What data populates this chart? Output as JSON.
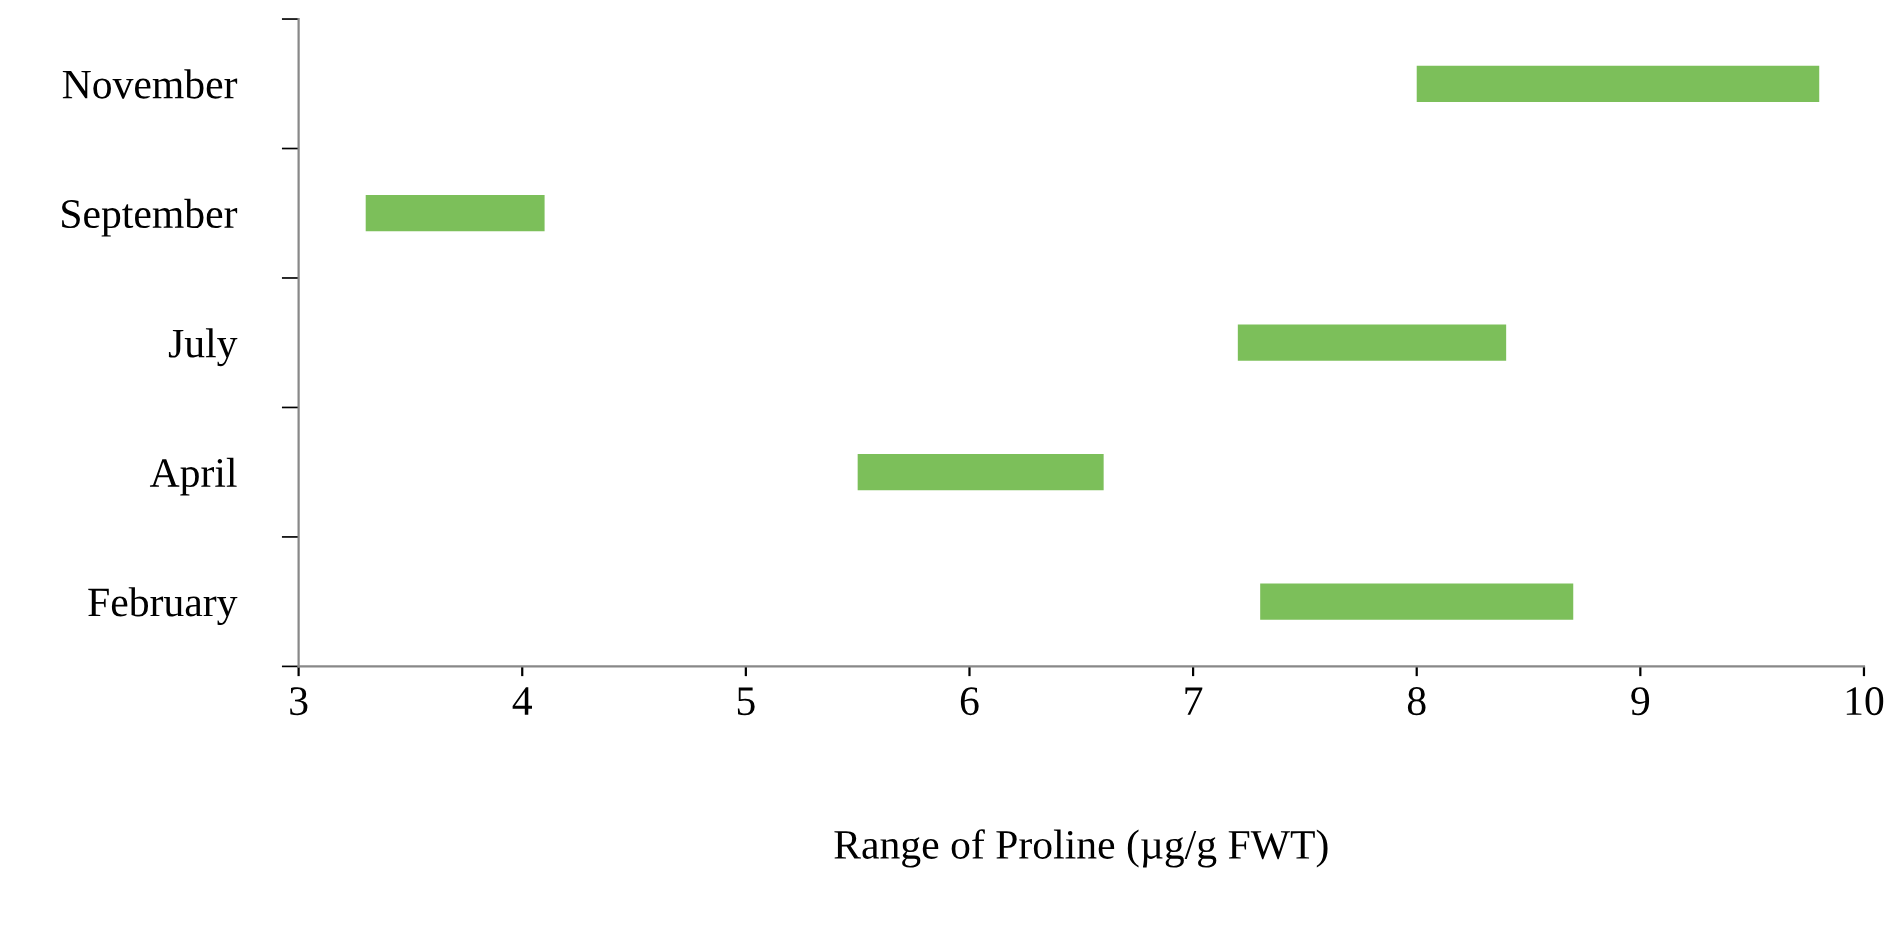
{
  "chart_data": {
    "type": "bar",
    "orientation": "horizontal",
    "xlabel": "Range of Proline (µg/g FWT)",
    "categories": [
      "November",
      "September",
      "July",
      "April",
      "February"
    ],
    "base": [
      8.0,
      3.3,
      7.2,
      5.5,
      7.3
    ],
    "values": [
      1.8,
      0.8,
      1.2,
      1.1,
      1.4
    ],
    "color": "#7cbf5a",
    "xlim": [
      3,
      10
    ],
    "xticks": [
      3,
      4,
      5,
      6,
      7,
      8,
      9,
      10
    ],
    "grid": false,
    "legend": false
  }
}
